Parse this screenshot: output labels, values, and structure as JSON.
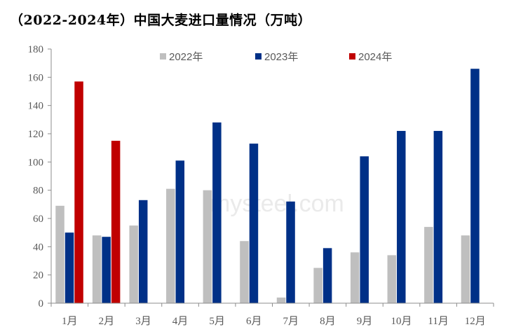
{
  "chart_data": {
    "type": "bar",
    "title": "（2022-2024年）中国大麦进口量情况（万吨）",
    "categories": [
      "1月",
      "2月",
      "3月",
      "4月",
      "5月",
      "6月",
      "7月",
      "8月",
      "9月",
      "10月",
      "11月",
      "12月"
    ],
    "series": [
      {
        "name": "2022年",
        "color": "#bfbfbf",
        "values": [
          69,
          48,
          55,
          81,
          80,
          44,
          4,
          25,
          36,
          34,
          54,
          48
        ]
      },
      {
        "name": "2023年",
        "color": "#003087",
        "values": [
          50,
          47,
          73,
          101,
          128,
          113,
          72,
          39,
          104,
          122,
          122,
          166
        ]
      },
      {
        "name": "2024年",
        "color": "#c00000",
        "values": [
          157,
          115,
          null,
          null,
          null,
          null,
          null,
          null,
          null,
          null,
          null,
          null
        ]
      }
    ],
    "ylim": [
      0,
      180
    ],
    "yticks": [
      0,
      20,
      40,
      60,
      80,
      100,
      120,
      140,
      160,
      180
    ],
    "legend_position": "top",
    "grid": false,
    "watermark": "mysteel.com"
  }
}
